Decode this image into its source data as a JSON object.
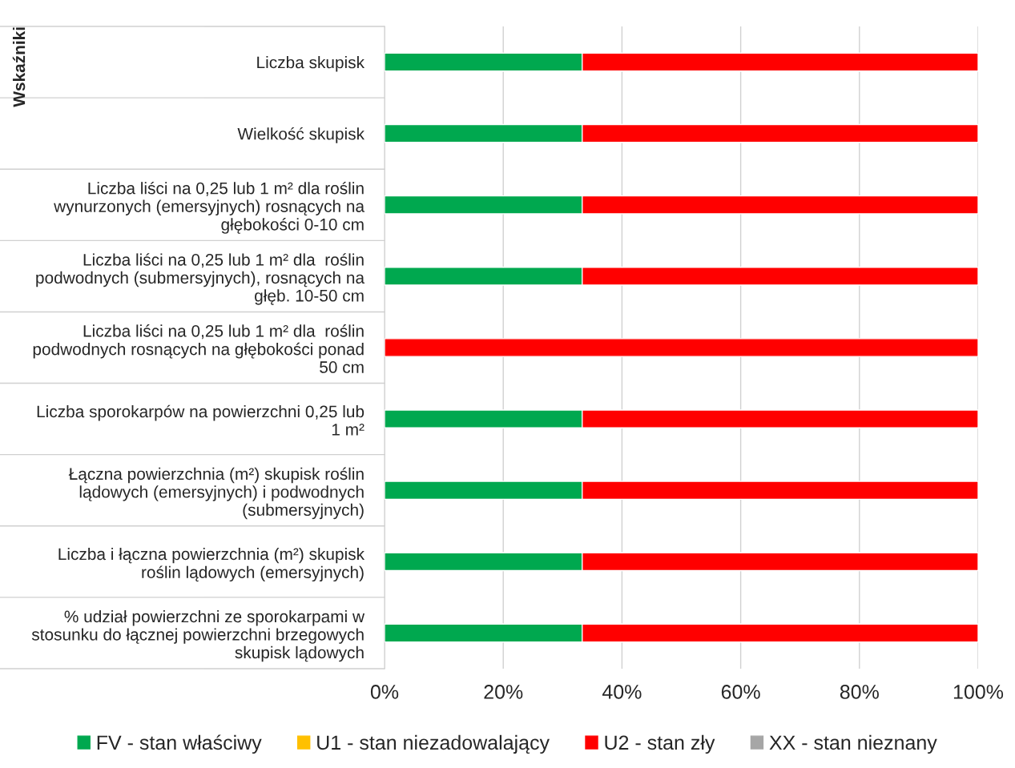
{
  "chart_data": {
    "type": "bar",
    "orientation": "horizontal",
    "stacked": true,
    "ylabel": "Wskaźniki",
    "categories": [
      "Liczba skupisk",
      "Wielkość skupisk",
      "Liczba liści na 0,25 lub 1 m² dla roślin\nwynurzonych (emersyjnych) rosnących na\ngłębokości 0-10 cm",
      "Liczba liści na 0,25 lub 1 m² dla  roślin\npodwodnych (submersyjnych), rosnących na\ngłęb. 10-50 cm",
      "Liczba liści na 0,25 lub 1 m² dla  roślin\npodwodnych rosnących na głębokości ponad\n50 cm",
      "Liczba sporokarpów na powierzchni 0,25 lub\n1 m²",
      "Łączna powierzchnia (m²) skupisk roślin\nlądowych (emersyjnych) i podwodnych\n(submersyjnych)",
      "Liczba i łączna powierzchnia (m²) skupisk\nroślin lądowych (emersyjnych)",
      "% udział powierzchni ze sporokarpami w\nstosunku do łącznej powierzchni brzegowych\nskupisk lądowych"
    ],
    "series": [
      {
        "name": "FV - stan właściwy",
        "color": "#00a84f",
        "values": [
          33.3,
          33.3,
          33.3,
          33.3,
          0,
          33.3,
          33.3,
          33.3,
          33.3
        ]
      },
      {
        "name": "U1 - stan niezadowalający",
        "color": "#ffc000",
        "values": [
          null,
          null,
          null,
          null,
          null,
          null,
          null,
          null,
          null
        ]
      },
      {
        "name": "U2 - stan zły",
        "color": "#ff0000",
        "values": [
          66.7,
          66.7,
          66.7,
          66.7,
          100,
          66.7,
          66.7,
          66.7,
          66.7
        ]
      },
      {
        "name": "XX - stan nieznany",
        "color": "#a6a6a6",
        "values": [
          null,
          null,
          null,
          null,
          null,
          null,
          null,
          null,
          null
        ]
      }
    ],
    "xlim": [
      0,
      100
    ],
    "xticks": [
      {
        "value": 0,
        "label": "0%"
      },
      {
        "value": 20,
        "label": "20%"
      },
      {
        "value": 40,
        "label": "40%"
      },
      {
        "value": 60,
        "label": "60%"
      },
      {
        "value": 80,
        "label": "80%"
      },
      {
        "value": 100,
        "label": "100%"
      }
    ],
    "grid": "x",
    "legend": "bottom"
  }
}
